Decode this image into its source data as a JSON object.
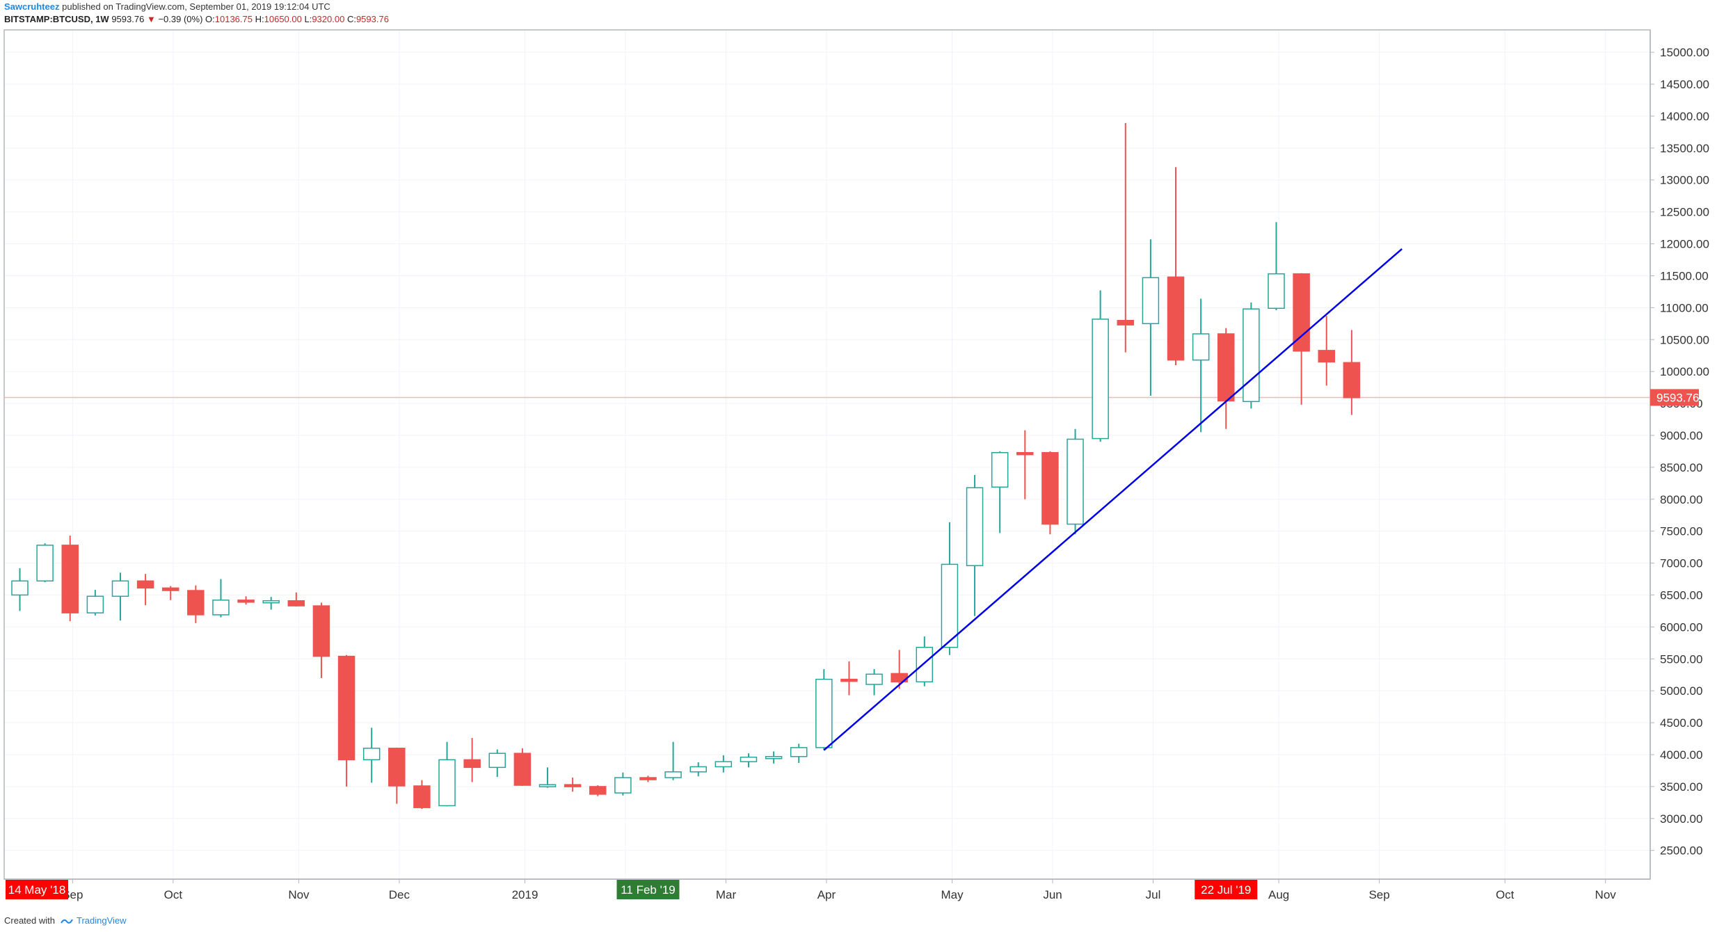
{
  "header": {
    "author": "Sawcruhteez",
    "published": "published on TradingView.com, September 01, 2019 19:12:04 UTC",
    "symbol": "BITSTAMP:BTCUSD, 1W",
    "last_price": "9593.76",
    "change_arrow": "▼",
    "change": "−0.39 (0%)",
    "o_label": "O:",
    "o_value": "10136.75",
    "h_label": "H:",
    "h_value": "10650.00",
    "l_label": "L:",
    "l_value": "9320.00",
    "c_label": "C:",
    "c_value": "9593.76"
  },
  "footer": {
    "created_with": "Created with",
    "brand": "TradingView"
  },
  "colors": {
    "up": "#26a69a",
    "down": "#ef5350",
    "trendline": "#0000e6",
    "price_line": "#f4b6b6",
    "grid": "#f0f3fa",
    "marker_red": "#ff0000",
    "marker_green": "#2e7d32"
  },
  "chart_data": {
    "type": "candlestick",
    "interval": "1W",
    "ylim": [
      2050,
      15350
    ],
    "y_ticks": [
      "15000.00",
      "14500.00",
      "14000.00",
      "13500.00",
      "13000.00",
      "12500.00",
      "12000.00",
      "11500.00",
      "11000.00",
      "10500.00",
      "10000.00",
      "9500.00",
      "9000.00",
      "8500.00",
      "8000.00",
      "7500.00",
      "7000.00",
      "6500.00",
      "6000.00",
      "5500.00",
      "5000.00",
      "4500.00",
      "4000.00",
      "3500.00",
      "3000.00",
      "2500.00"
    ],
    "x_month_labels": [
      {
        "label": "Sep",
        "index": 2.1
      },
      {
        "label": "Oct",
        "index": 6.1
      },
      {
        "label": "Nov",
        "index": 11.1
      },
      {
        "label": "Dec",
        "index": 15.1
      },
      {
        "label": "2019",
        "index": 20.1
      },
      {
        "label": "F",
        "index": 24.1
      },
      {
        "label": "Mar",
        "index": 28.1
      },
      {
        "label": "Apr",
        "index": 32.1
      },
      {
        "label": "May",
        "index": 37.1
      },
      {
        "label": "Jun",
        "index": 41.1
      },
      {
        "label": "Jul",
        "index": 45.1
      },
      {
        "label": "Aug",
        "index": 50.1
      },
      {
        "label": "Sep",
        "index": 54.1
      },
      {
        "label": "Oct",
        "index": 59.1
      },
      {
        "label": "Nov",
        "index": 63.1
      }
    ],
    "time_markers": [
      {
        "label": "14 May '18",
        "color": "red",
        "position": "left-edge"
      },
      {
        "label": "11 Feb '19",
        "index": 25,
        "color": "green"
      },
      {
        "label": "22 Jul '19",
        "index": 48,
        "color": "red"
      }
    ],
    "last_price": 9593.76,
    "last_price_label": "9593.76",
    "trendline": {
      "from": {
        "index": 32,
        "value": 4070
      },
      "to": {
        "index": 55,
        "value": 11920
      }
    },
    "candles": [
      [
        6500,
        6920,
        6250,
        6720
      ],
      [
        6720,
        7310,
        6700,
        7280
      ],
      [
        7280,
        7430,
        6090,
        6220
      ],
      [
        6220,
        6580,
        6180,
        6480
      ],
      [
        6480,
        6850,
        6100,
        6720
      ],
      [
        6720,
        6830,
        6340,
        6610
      ],
      [
        6610,
        6640,
        6420,
        6570
      ],
      [
        6570,
        6650,
        6060,
        6190
      ],
      [
        6190,
        6750,
        6150,
        6420
      ],
      [
        6420,
        6480,
        6350,
        6390
      ],
      [
        6390,
        6470,
        6270,
        6410
      ],
      [
        6410,
        6540,
        6320,
        6330
      ],
      [
        6330,
        6380,
        5200,
        5540
      ],
      [
        5540,
        5560,
        3500,
        3920
      ],
      [
        3920,
        4420,
        3560,
        4100
      ],
      [
        4100,
        4110,
        3230,
        3510
      ],
      [
        3510,
        3600,
        3150,
        3170
      ],
      [
        3200,
        4200,
        3190,
        3920
      ],
      [
        3920,
        4260,
        3570,
        3800
      ],
      [
        3800,
        4080,
        3650,
        4020
      ],
      [
        4020,
        4100,
        3510,
        3520
      ],
      [
        3520,
        3800,
        3480,
        3530
      ],
      [
        3530,
        3640,
        3420,
        3500
      ],
      [
        3500,
        3520,
        3350,
        3380
      ],
      [
        3400,
        3720,
        3360,
        3640
      ],
      [
        3640,
        3670,
        3570,
        3620
      ],
      [
        3640,
        4200,
        3600,
        3730
      ],
      [
        3730,
        3880,
        3660,
        3810
      ],
      [
        3810,
        3990,
        3720,
        3890
      ],
      [
        3890,
        4020,
        3800,
        3960
      ],
      [
        3960,
        4050,
        3860,
        3970
      ],
      [
        3970,
        4170,
        3870,
        4110
      ],
      [
        4110,
        5340,
        4070,
        5180
      ],
      [
        5180,
        5460,
        4930,
        5170
      ],
      [
        5100,
        5340,
        4930,
        5260
      ],
      [
        5270,
        5640,
        5030,
        5140
      ],
      [
        5140,
        5850,
        5070,
        5680
      ],
      [
        5680,
        7640,
        5560,
        6980
      ],
      [
        6960,
        8380,
        6170,
        8180
      ],
      [
        8190,
        8750,
        7470,
        8730
      ],
      [
        8730,
        9080,
        8000,
        8720
      ],
      [
        8730,
        8750,
        7450,
        7610
      ],
      [
        7610,
        9100,
        7450,
        8940
      ],
      [
        8950,
        11270,
        8900,
        10820
      ],
      [
        10800,
        13890,
        10300,
        10730
      ],
      [
        10750,
        12070,
        9620,
        11470
      ],
      [
        11480,
        13200,
        10100,
        10180
      ],
      [
        10180,
        11140,
        9050,
        10590
      ],
      [
        10590,
        10680,
        9100,
        9540
      ],
      [
        9530,
        11080,
        9420,
        10980
      ],
      [
        10990,
        12340,
        10960,
        11530
      ],
      [
        11530,
        11540,
        9480,
        10320
      ],
      [
        10330,
        10870,
        9780,
        10150
      ],
      [
        10140,
        10650,
        9320,
        9590
      ]
    ]
  }
}
